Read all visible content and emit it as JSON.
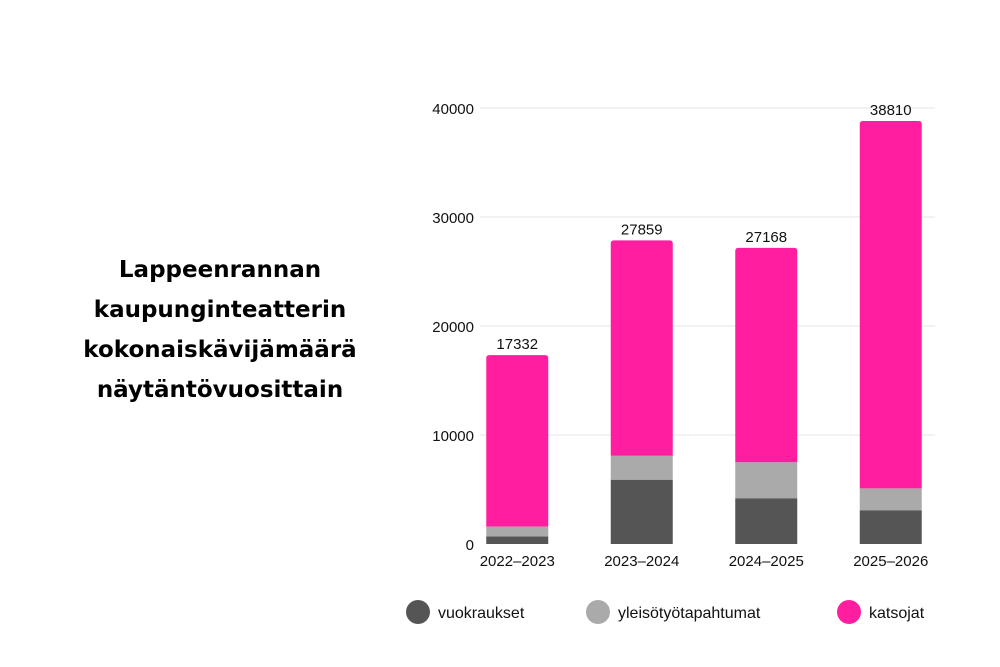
{
  "title_lines": [
    "Lappeenrannan",
    "kaupunginteatterin",
    "kokonaiskävijämäärä",
    "näytäntövuosittain"
  ],
  "chart_data": {
    "type": "bar",
    "stacked": true,
    "categories": [
      "2022–2023",
      "2023–2024",
      "2024–2025",
      "2025–2026"
    ],
    "series": [
      {
        "name": "vuokraukset",
        "color": "#555555",
        "values": [
          700,
          5900,
          4200,
          3100
        ]
      },
      {
        "name": "yleisötyötapahtumat",
        "color": "#aaaaaa",
        "values": [
          900,
          2200,
          3300,
          2000
        ]
      },
      {
        "name": "katsojat",
        "color": "#ff1ea0",
        "values": [
          15732,
          19759,
          19668,
          33710
        ]
      }
    ],
    "totals": [
      "17332",
      "27859",
      "27168",
      "38810"
    ],
    "yticks": [
      "0",
      "10000",
      "20000",
      "30000",
      "40000"
    ],
    "ylim": [
      0,
      40000
    ],
    "grid": true,
    "legend_position": "bottom"
  }
}
